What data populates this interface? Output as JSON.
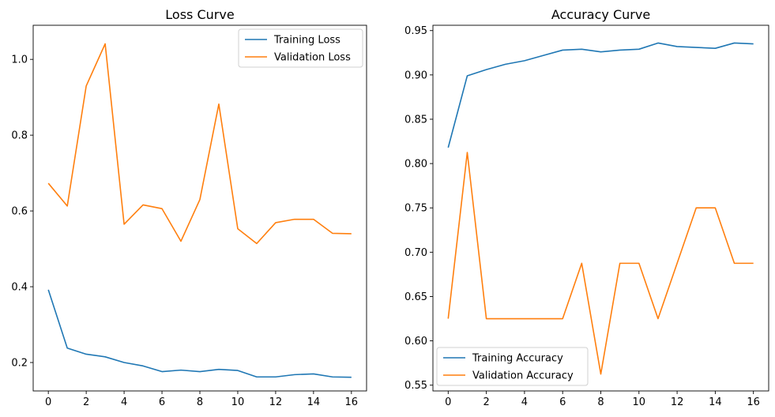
{
  "chart_data": [
    {
      "type": "line",
      "title": "Loss Curve",
      "xlabel": "",
      "ylabel": "",
      "x": [
        0,
        1,
        2,
        3,
        4,
        5,
        6,
        7,
        8,
        9,
        10,
        11,
        12,
        13,
        14,
        15,
        16
      ],
      "xlim": [
        -0.8,
        16.8
      ],
      "ylim": [
        0.125,
        1.09
      ],
      "xticks": [
        0,
        2,
        4,
        6,
        8,
        10,
        12,
        14,
        16
      ],
      "yticks": [
        0.2,
        0.4,
        0.6,
        0.8,
        1.0
      ],
      "ytick_labels": [
        "0.2",
        "0.4",
        "0.6",
        "0.8",
        "1.0"
      ],
      "legend_position": "top-right",
      "grid": false,
      "series": [
        {
          "name": "Training Loss",
          "color": "#1f77b4",
          "values": [
            0.392,
            0.238,
            0.222,
            0.215,
            0.2,
            0.191,
            0.176,
            0.18,
            0.176,
            0.182,
            0.179,
            0.162,
            0.162,
            0.168,
            0.17,
            0.162,
            0.161
          ]
        },
        {
          "name": "Validation Loss",
          "color": "#ff7f0e",
          "values": [
            0.673,
            0.613,
            0.93,
            1.041,
            0.565,
            0.616,
            0.606,
            0.52,
            0.63,
            0.882,
            0.553,
            0.514,
            0.569,
            0.578,
            0.578,
            0.541,
            0.54
          ]
        }
      ]
    },
    {
      "type": "line",
      "title": "Accuracy Curve",
      "xlabel": "",
      "ylabel": "",
      "x": [
        0,
        1,
        2,
        3,
        4,
        5,
        6,
        7,
        8,
        9,
        10,
        11,
        12,
        13,
        14,
        15,
        16
      ],
      "xlim": [
        -0.8,
        16.8
      ],
      "ylim": [
        0.5435,
        0.956
      ],
      "xticks": [
        0,
        2,
        4,
        6,
        8,
        10,
        12,
        14,
        16
      ],
      "yticks": [
        0.55,
        0.6,
        0.65,
        0.7,
        0.75,
        0.8,
        0.85,
        0.9,
        0.95
      ],
      "ytick_labels": [
        "0.55",
        "0.60",
        "0.65",
        "0.70",
        "0.75",
        "0.80",
        "0.85",
        "0.90",
        "0.95"
      ],
      "legend_position": "bottom-left",
      "grid": false,
      "series": [
        {
          "name": "Training Accuracy",
          "color": "#1f77b4",
          "values": [
            0.818,
            0.899,
            0.906,
            0.912,
            0.916,
            0.922,
            0.928,
            0.929,
            0.926,
            0.928,
            0.929,
            0.936,
            0.932,
            0.931,
            0.93,
            0.936,
            0.935
          ]
        },
        {
          "name": "Validation Accuracy",
          "color": "#ff7f0e",
          "values": [
            0.625,
            0.8125,
            0.625,
            0.625,
            0.625,
            0.625,
            0.625,
            0.6875,
            0.5625,
            0.6875,
            0.6875,
            0.625,
            0.6875,
            0.75,
            0.75,
            0.6875,
            0.6875
          ]
        }
      ]
    }
  ]
}
